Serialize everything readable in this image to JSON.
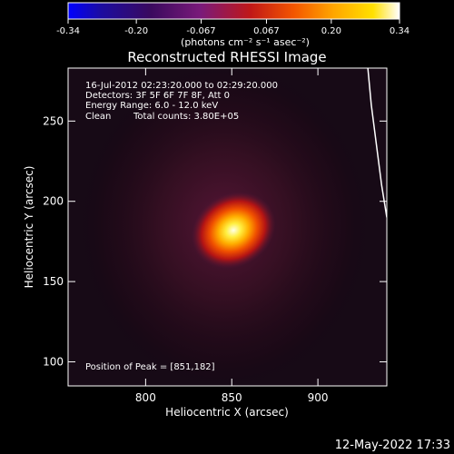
{
  "chart_data": {
    "type": "heatmap",
    "title": "Reconstructed RHESSI Image",
    "xlabel": "Heliocentric X (arcsec)",
    "ylabel": "Heliocentric Y (arcsec)",
    "xlim": [
      755,
      940
    ],
    "ylim": [
      85,
      283
    ],
    "x_ticks": [
      "800",
      "850",
      "900"
    ],
    "y_ticks": [
      "100",
      "150",
      "200",
      "250"
    ],
    "colorbar": {
      "ticks": [
        "-0.34",
        "-0.20",
        "-0.067",
        "0.067",
        "0.20",
        "0.34"
      ],
      "label": "(photons cm⁻² s⁻¹ asec⁻²)",
      "range": [
        -0.34,
        0.34
      ],
      "colormap": [
        "#0000ff",
        "#3a0a5e",
        "#7a1a7a",
        "#c01818",
        "#f35500",
        "#ffa500",
        "#ffe000",
        "#ffffff"
      ]
    },
    "annotations": [
      "16-Jul-2012 02:23:20.000 to 02:29:20.000",
      "Detectors: 3F 5F 6F 7F 8F, Att 0",
      "Energy Range: 6.0 - 12.0 keV",
      "Clean",
      "Total counts: 3.80E+05"
    ],
    "peak_label": "Position of Peak = [851,182]",
    "source": {
      "x": 851,
      "y": 182,
      "peak_value": 0.34
    },
    "limb": [
      [
        929,
        283
      ],
      [
        931,
        260
      ],
      [
        934,
        235
      ],
      [
        937,
        210
      ],
      [
        940,
        190
      ]
    ]
  },
  "footer": {
    "timestamp": "12-May-2022 17:33"
  }
}
